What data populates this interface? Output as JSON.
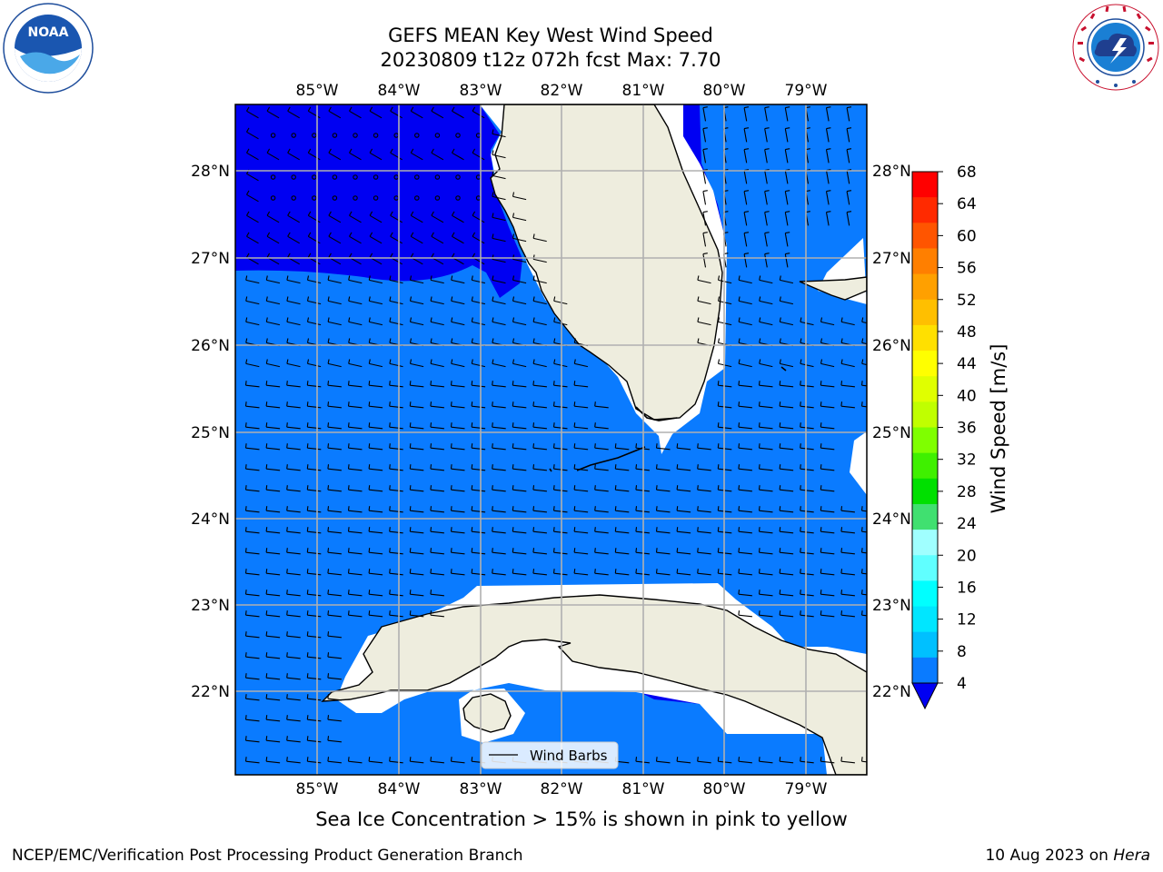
{
  "header": {
    "title_line1": "GEFS MEAN Key West Wind Speed",
    "title_line2": "20230809 t12z 072h fcst   Max: 7.70"
  },
  "logos": {
    "left": {
      "icon": "noaa-logo",
      "text": "NOAA"
    },
    "right": {
      "icon": "national-weather-service-logo"
    }
  },
  "map": {
    "region": "Key West",
    "lon_ticks": [
      "85°W",
      "84°W",
      "83°W",
      "82°W",
      "81°W",
      "80°W",
      "79°W"
    ],
    "lat_ticks": [
      "28°N",
      "27°N",
      "26°N",
      "25°N",
      "24°N",
      "23°N",
      "22°N"
    ],
    "legend_label": "Wind Barbs",
    "colors": {
      "band_4_8": "#0a7bff",
      "below_4": "#0000f2",
      "land": "#eeedde",
      "grid": "#b0b0b0"
    }
  },
  "colorbar": {
    "label": "Wind Speed [m/s]",
    "ticks": [
      "68",
      "64",
      "60",
      "56",
      "52",
      "48",
      "44",
      "40",
      "36",
      "32",
      "28",
      "24",
      "20",
      "16",
      "12",
      "8",
      "4"
    ],
    "colors": [
      "#ff0000",
      "#ff2a00",
      "#ff5500",
      "#ff7f00",
      "#ffa000",
      "#ffbf00",
      "#ffe000",
      "#ffff00",
      "#e0ff00",
      "#c0ff00",
      "#7fff00",
      "#3ff000",
      "#00e000",
      "#40e070",
      "#a0ffff",
      "#60ffff",
      "#00ffff",
      "#00e6ff",
      "#00c0ff",
      "#0a7bff"
    ],
    "extend_color": "#0000f2"
  },
  "caption": "Sea Ice Concentration > 15% is shown in pink to yellow",
  "footer": {
    "left": "NCEP/EMC/Verification Post Processing Product Generation Branch",
    "date": "10 Aug 2023 on ",
    "machine": "Hera"
  }
}
